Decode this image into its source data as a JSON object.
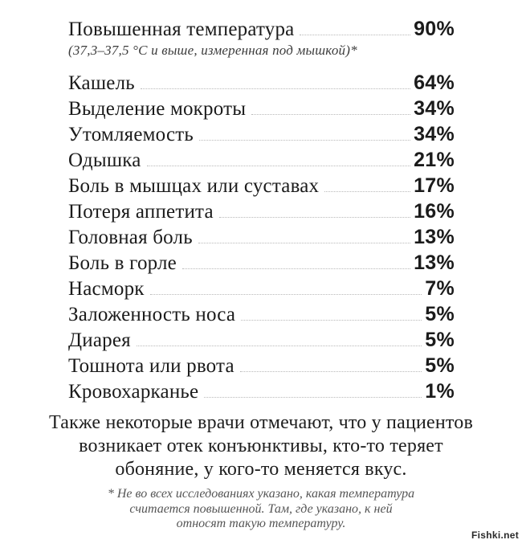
{
  "colors": {
    "background": "#ffffff",
    "text": "#1b1b1b",
    "leader_dots": "#b9b9b9",
    "subtitle_text": "#3c3c3c",
    "footnote_text": "#555555"
  },
  "chart_data": {
    "type": "table",
    "title": "",
    "categories": [
      "Повышенная температура",
      "Кашель",
      "Выделение мокроты",
      "Утомляемость",
      "Одышка",
      "Боль в мышцах или суставах",
      "Потеря аппетита",
      "Головная боль",
      "Боль в горле",
      "Насморк",
      "Заложенность носа",
      "Диарея",
      "Тошнота или рвота",
      "Кровохарканье"
    ],
    "values": [
      90,
      64,
      34,
      34,
      21,
      17,
      16,
      13,
      13,
      7,
      5,
      5,
      5,
      1
    ],
    "unit": "%",
    "items": [
      {
        "label": "Повышенная температура",
        "pct": "90%"
      },
      {
        "label": "Кашель",
        "pct": "64%"
      },
      {
        "label": "Выделение мокроты",
        "pct": "34%"
      },
      {
        "label": "Утомляемость",
        "pct": "34%"
      },
      {
        "label": "Одышка",
        "pct": "21%"
      },
      {
        "label": "Боль в мышцах или суставах",
        "pct": "17%"
      },
      {
        "label": "Потеря аппетита",
        "pct": "16%"
      },
      {
        "label": "Головная боль",
        "pct": "13%"
      },
      {
        "label": "Боль в горле",
        "pct": "13%"
      },
      {
        "label": "Насморк",
        "pct": "7%"
      },
      {
        "label": "Заложенность носа",
        "pct": "5%"
      },
      {
        "label": "Диарея",
        "pct": "5%"
      },
      {
        "label": "Тошнота или рвота",
        "pct": "5%"
      },
      {
        "label": "Кровохарканье",
        "pct": "1%"
      }
    ],
    "first_item_note": "(37,3–37,5 °C и выше, измеренная под мышкой)*"
  },
  "footer": {
    "lines": [
      "Также некоторые врачи отмечают, что у пациентов",
      "возникает отек конъюнктивы, кто-то теряет",
      "обоняние, у кого-то меняется вкус."
    ]
  },
  "footnote": {
    "lines": [
      "* Не во всех исследованиях указано, какая температура",
      "считается повышенной. Там, где указано, к ней",
      "относят такую температуру."
    ]
  },
  "watermark": "Fishki.net"
}
